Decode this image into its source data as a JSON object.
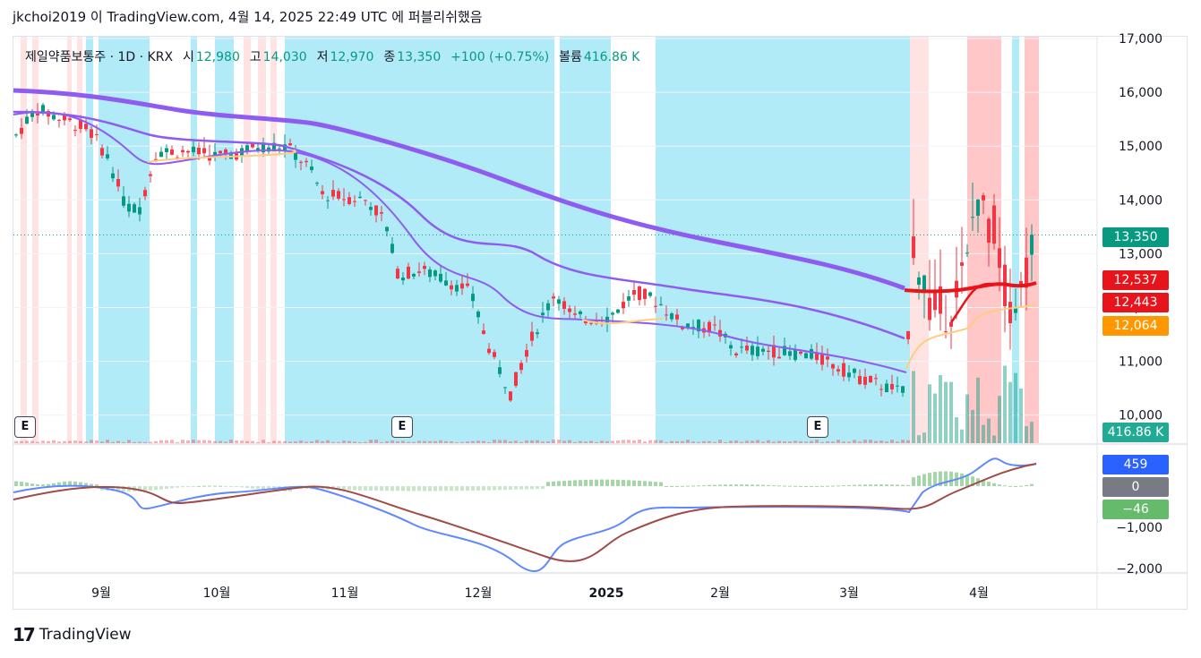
{
  "published": "jkchoi2019 이 TradingView.com, 4월 14, 2025 22:49 UTC 에 퍼블리쉬했음",
  "legend": {
    "symbol": "제일약품보통주 · 1D · KRX",
    "o_label": "시",
    "o": "12,980",
    "h_label": "고",
    "h": "14,030",
    "l_label": "저",
    "l": "12,970",
    "c_label": "종",
    "c": "13,350",
    "change": "+100 (+0.75%)",
    "vol_label": "볼륨",
    "vol": "416.86 K"
  },
  "earnings_marker": "E",
  "price_tags": {
    "last": "13,350",
    "red1": "12,537",
    "red2": "12,443",
    "orange": "12,064",
    "volume": "416.86 K",
    "macd_line": "459",
    "zero": "0",
    "hist": "−46"
  },
  "brand": "TradingView",
  "colors": {
    "up": "#089981",
    "down": "#f23645",
    "blue_bg": "#b2ebf8",
    "pink_bg": "#ffd6d6",
    "purple": "#8e5cf0",
    "orange": "#ffcc80",
    "red_ma": "#e8141b",
    "macd": "#6189ff",
    "signal": "#a14b48"
  },
  "chart_data": {
    "type": "candlestick",
    "price_axis": {
      "ticks": [
        10000,
        11000,
        12000,
        13000,
        14000,
        15000,
        16000,
        17000
      ],
      "tick_labels": [
        "10,000",
        "11,000",
        "12,000",
        "13,000",
        "14,000",
        "15,000",
        "16,000",
        "17,000"
      ]
    },
    "macd_axis": {
      "ticks": [
        -2000,
        -1000
      ],
      "tick_labels": [
        "−2,000",
        "−1,000"
      ]
    },
    "x_labels": [
      "9월",
      "10월",
      "11월",
      "12월",
      "2025",
      "2월",
      "3월",
      "4월"
    ],
    "last_close": 13350,
    "ma_values_last": {
      "ma_short_red": 12537,
      "ma_long_purple": 12443,
      "ma_orange": 12064
    },
    "macd_last": {
      "macd": 459,
      "histogram": -46
    }
  }
}
